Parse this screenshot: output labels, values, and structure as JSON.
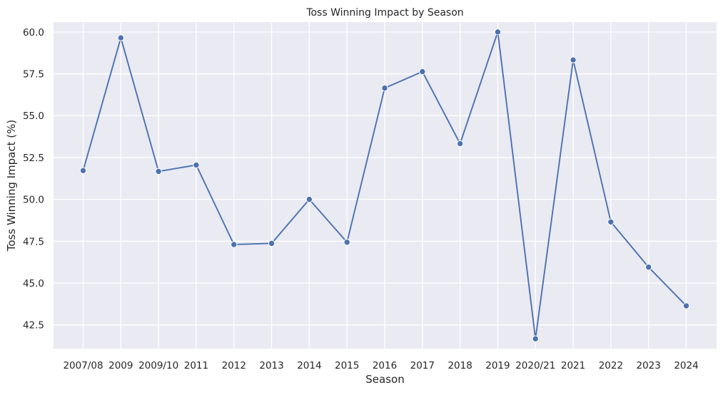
{
  "chart_data": {
    "type": "line",
    "title": "Toss Winning Impact by Season",
    "xlabel": "Season",
    "ylabel": "Toss Winning Impact (%)",
    "categories": [
      "2007/08",
      "2009",
      "2009/10",
      "2011",
      "2012",
      "2013",
      "2014",
      "2015",
      "2016",
      "2017",
      "2018",
      "2019",
      "2020/21",
      "2021",
      "2022",
      "2023",
      "2024"
    ],
    "series": [
      {
        "values": [
          51.72,
          59.65,
          51.67,
          52.05,
          47.3,
          47.37,
          50.0,
          47.44,
          56.65,
          57.63,
          53.33,
          60.0,
          41.67,
          58.33,
          48.65,
          45.95,
          43.64
        ],
        "color": "#4c72b0"
      }
    ],
    "yticks": [
      42.5,
      45.0,
      47.5,
      50.0,
      52.5,
      55.0,
      57.5,
      60.0
    ],
    "ytick_labels": [
      "42.5",
      "45.0",
      "47.5",
      "50.0",
      "52.5",
      "55.0",
      "57.5",
      "60.0"
    ],
    "ylim": [
      41.08,
      60.59
    ],
    "grid": true,
    "style": {
      "plot_background": "#eaeaf2",
      "grid_color": "#ffffff",
      "marker": "circle"
    }
  }
}
